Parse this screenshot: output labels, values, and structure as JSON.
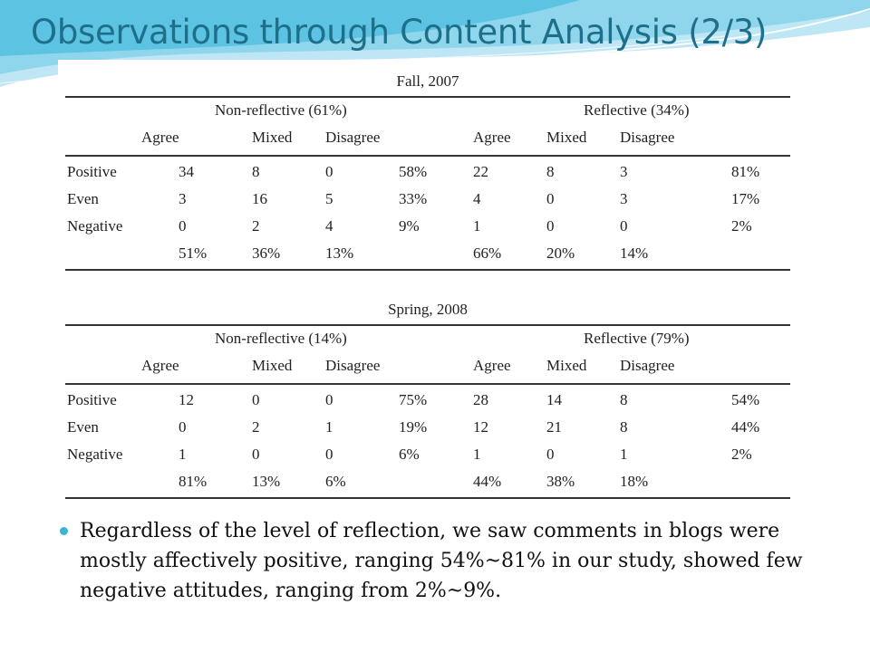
{
  "slide": {
    "title": "Observations through Content Analysis (2/3)"
  },
  "tables": [
    {
      "title": "Fall, 2007",
      "groups": [
        {
          "label": "Non-reflective  (61%)",
          "columns": [
            "Agree",
            "Mixed",
            "Disagree"
          ]
        },
        {
          "label": "Reflective (34%)",
          "columns": [
            "Agree",
            "Mixed",
            "Disagree"
          ]
        }
      ],
      "rows": [
        {
          "label": "Positive",
          "nr": [
            "34",
            "8",
            "0"
          ],
          "nr_pct": "58%",
          "r": [
            "22",
            "8",
            "3"
          ],
          "r_pct": "81%"
        },
        {
          "label": "Even",
          "nr": [
            "3",
            "16",
            "5"
          ],
          "nr_pct": "33%",
          "r": [
            "4",
            "0",
            "3"
          ],
          "r_pct": "17%"
        },
        {
          "label": "Negative",
          "nr": [
            "0",
            "2",
            "4"
          ],
          "nr_pct": "9%",
          "r": [
            "1",
            "0",
            "0"
          ],
          "r_pct": "2%"
        }
      ],
      "totals": {
        "nr": [
          "51%",
          "36%",
          "13%"
        ],
        "r": [
          "66%",
          "20%",
          "14%"
        ]
      }
    },
    {
      "title": "Spring, 2008",
      "groups": [
        {
          "label": "Non-reflective  (14%)",
          "columns": [
            "Agree",
            "Mixed",
            "Disagree"
          ]
        },
        {
          "label": "Reflective (79%)",
          "columns": [
            "Agree",
            "Mixed",
            "Disagree"
          ]
        }
      ],
      "rows": [
        {
          "label": "Positive",
          "nr": [
            "12",
            "0",
            "0"
          ],
          "nr_pct": "75%",
          "r": [
            "28",
            "14",
            "8"
          ],
          "r_pct": "54%"
        },
        {
          "label": "Even",
          "nr": [
            "0",
            "2",
            "1"
          ],
          "nr_pct": "19%",
          "r": [
            "12",
            "21",
            "8"
          ],
          "r_pct": "44%"
        },
        {
          "label": "Negative",
          "nr": [
            "1",
            "0",
            "0"
          ],
          "nr_pct": "6%",
          "r": [
            "1",
            "0",
            "1"
          ],
          "r_pct": "2%"
        }
      ],
      "totals": {
        "nr": [
          "81%",
          "13%",
          "6%"
        ],
        "r": [
          "44%",
          "38%",
          "18%"
        ]
      }
    }
  ],
  "bullets": [
    "Regardless of the level of reflection, we saw comments in blogs were mostly affectively positive, ranging 54%~81% in our study, showed few negative attitudes, ranging from 2%~9%."
  ],
  "colors": {
    "title": "#1e6f8a",
    "accent": "#3fb3d4",
    "wave_light": "#bfe6f4",
    "wave_mid": "#7ccfe9"
  }
}
